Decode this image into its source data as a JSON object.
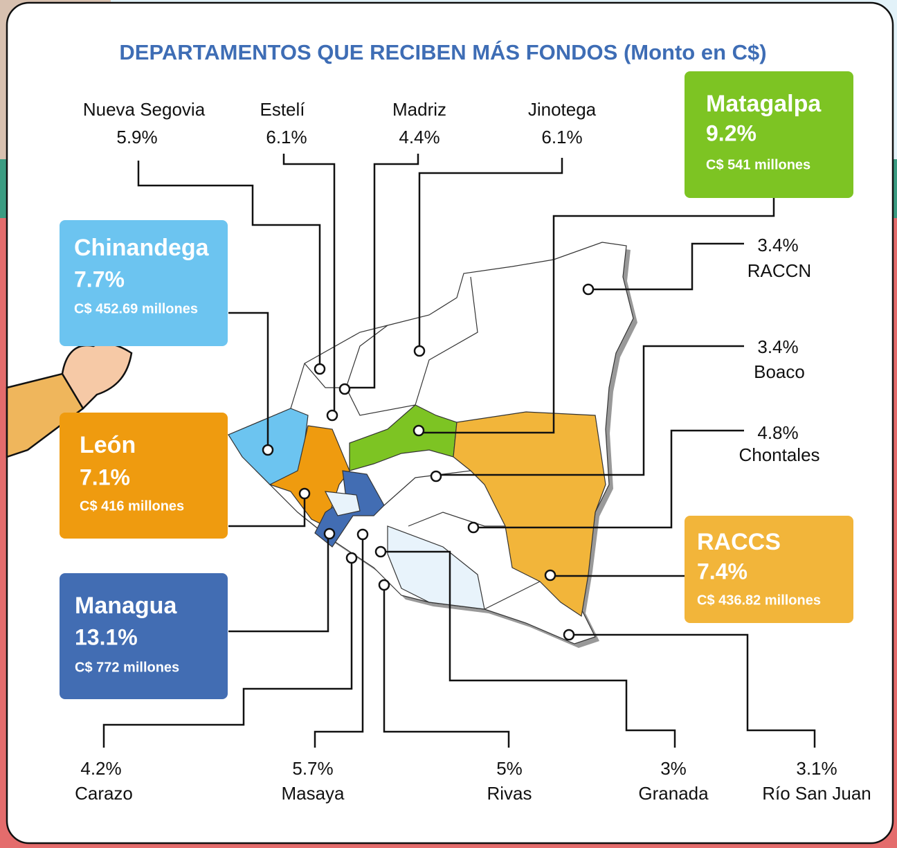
{
  "title": "DEPARTAMENTOS QUE RECIBEN MÁS FONDOS (Monto en C$)",
  "highlighted": [
    {
      "name": "Matagalpa",
      "share": "9.2%",
      "amount": "C$ 541 millones"
    },
    {
      "name": "Chinandega",
      "share": "7.7%",
      "amount": "C$ 452.69 millones"
    },
    {
      "name": "León",
      "share": "7.1%",
      "amount": "C$ 416 millones"
    },
    {
      "name": "Managua",
      "share": "13.1%",
      "amount": "C$ 772 millones"
    },
    {
      "name": "RACCS",
      "share": "7.4%",
      "amount": "C$ 436.82 millones"
    }
  ],
  "others": [
    {
      "name": "Nueva Segovia",
      "share": "5.9%"
    },
    {
      "name": "Estelí",
      "share": "6.1%"
    },
    {
      "name": "Madriz",
      "share": "4.4%"
    },
    {
      "name": "Jinotega",
      "share": "6.1%"
    },
    {
      "name": "RACCN",
      "share": "3.4%"
    },
    {
      "name": "Boaco",
      "share": "3.4%"
    },
    {
      "name": "Chontales",
      "share": "4.8%"
    },
    {
      "name": "Carazo",
      "share": "4.2%"
    },
    {
      "name": "Masaya",
      "share": "5.7%"
    },
    {
      "name": "Rivas",
      "share": "5%"
    },
    {
      "name": "Granada",
      "share": "3%"
    },
    {
      "name": "Río San Juan",
      "share": "3.1%"
    }
  ]
}
